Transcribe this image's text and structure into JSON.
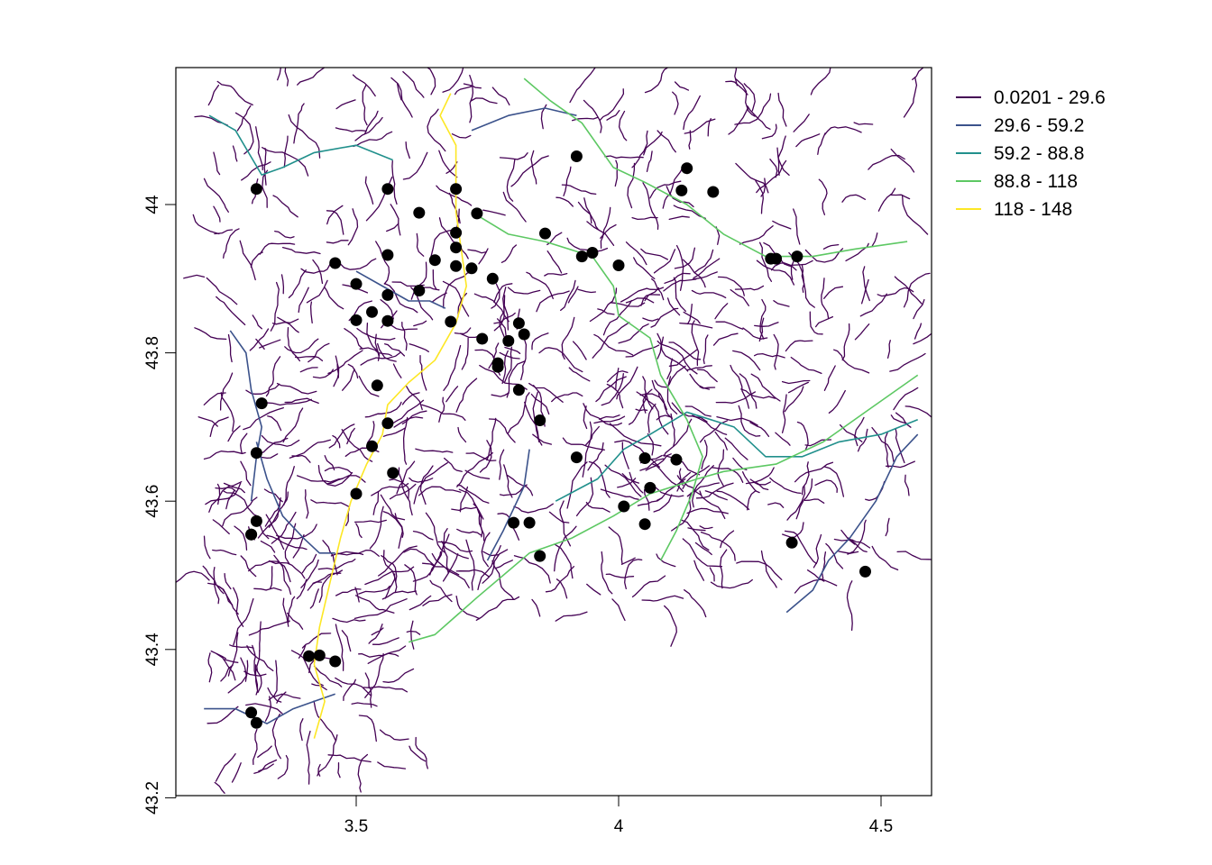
{
  "map": {
    "x_axis": {
      "ticks": [
        "3.5",
        "4",
        "4.5"
      ],
      "tick_values": [
        3.5,
        4.0,
        4.5
      ],
      "range": [
        3.2,
        4.57
      ]
    },
    "y_axis": {
      "ticks": [
        "43.2",
        "43.4",
        "43.6",
        "43.8",
        "44"
      ],
      "tick_values": [
        43.2,
        43.4,
        43.6,
        43.8,
        44.0
      ],
      "range": [
        43.2,
        44.17
      ]
    },
    "legend": {
      "placement": "right-top",
      "entries": [
        {
          "label": "0.0201 - 29.6",
          "color": "#440154"
        },
        {
          "label": "29.6 - 59.2",
          "color": "#3B528B"
        },
        {
          "label": "59.2 - 88.8",
          "color": "#21908C"
        },
        {
          "label": "88.8 - 118",
          "color": "#5DC863"
        },
        {
          "label": "118 - 148",
          "color": "#FDE725"
        }
      ]
    },
    "stations": [
      [
        3.31,
        44.021
      ],
      [
        3.56,
        44.021
      ],
      [
        3.69,
        44.021
      ],
      [
        3.62,
        43.989
      ],
      [
        3.73,
        43.988
      ],
      [
        3.92,
        44.065
      ],
      [
        4.13,
        44.049
      ],
      [
        4.12,
        44.019
      ],
      [
        4.18,
        44.017
      ],
      [
        3.86,
        43.961
      ],
      [
        3.69,
        43.962
      ],
      [
        3.69,
        43.942
      ],
      [
        3.56,
        43.932
      ],
      [
        3.65,
        43.925
      ],
      [
        3.69,
        43.917
      ],
      [
        3.72,
        43.914
      ],
      [
        3.46,
        43.921
      ],
      [
        3.93,
        43.93
      ],
      [
        3.95,
        43.935
      ],
      [
        4.0,
        43.918
      ],
      [
        4.29,
        43.927
      ],
      [
        4.3,
        43.927
      ],
      [
        4.34,
        43.93
      ],
      [
        3.76,
        43.9
      ],
      [
        3.5,
        43.893
      ],
      [
        3.62,
        43.884
      ],
      [
        3.56,
        43.878
      ],
      [
        3.53,
        43.855
      ],
      [
        3.5,
        43.844
      ],
      [
        3.56,
        43.843
      ],
      [
        3.68,
        43.842
      ],
      [
        3.81,
        43.84
      ],
      [
        3.82,
        43.825
      ],
      [
        3.74,
        43.819
      ],
      [
        3.79,
        43.816
      ],
      [
        3.77,
        43.786
      ],
      [
        3.77,
        43.781
      ],
      [
        3.54,
        43.756
      ],
      [
        3.81,
        43.75
      ],
      [
        3.32,
        43.732
      ],
      [
        3.56,
        43.705
      ],
      [
        3.85,
        43.709
      ],
      [
        3.53,
        43.674
      ],
      [
        3.31,
        43.665
      ],
      [
        3.92,
        43.659
      ],
      [
        4.05,
        43.658
      ],
      [
        4.11,
        43.656
      ],
      [
        3.57,
        43.638
      ],
      [
        4.06,
        43.618
      ],
      [
        3.5,
        43.61
      ],
      [
        4.01,
        43.593
      ],
      [
        3.31,
        43.573
      ],
      [
        3.8,
        43.571
      ],
      [
        3.83,
        43.571
      ],
      [
        4.05,
        43.569
      ],
      [
        3.3,
        43.555
      ],
      [
        3.3,
        43.555
      ],
      [
        4.33,
        43.544
      ],
      [
        3.85,
        43.526
      ],
      [
        4.47,
        43.505
      ],
      [
        3.41,
        43.391
      ],
      [
        3.43,
        43.392
      ],
      [
        3.46,
        43.384
      ],
      [
        3.3,
        43.315
      ],
      [
        3.31,
        43.301
      ]
    ],
    "rivers": [
      {
        "class": 4,
        "points": [
          [
            3.68,
            44.15
          ],
          [
            3.66,
            44.12
          ],
          [
            3.69,
            44.08
          ],
          [
            3.69,
            44.03
          ],
          [
            3.69,
            43.99
          ],
          [
            3.7,
            43.94
          ],
          [
            3.71,
            43.89
          ],
          [
            3.69,
            43.84
          ],
          [
            3.65,
            43.79
          ],
          [
            3.6,
            43.76
          ],
          [
            3.56,
            43.73
          ],
          [
            3.55,
            43.69
          ],
          [
            3.52,
            43.65
          ],
          [
            3.49,
            43.6
          ],
          [
            3.47,
            43.55
          ],
          [
            3.45,
            43.49
          ],
          [
            3.43,
            43.43
          ],
          [
            3.42,
            43.38
          ],
          [
            3.44,
            43.33
          ],
          [
            3.42,
            43.28
          ]
        ]
      },
      {
        "class": 3,
        "points": [
          [
            3.82,
            44.17
          ],
          [
            3.87,
            44.14
          ],
          [
            3.93,
            44.11
          ],
          [
            3.99,
            44.05
          ],
          [
            4.05,
            44.03
          ],
          [
            4.13,
            44.0
          ],
          [
            4.2,
            43.96
          ],
          [
            4.28,
            43.93
          ],
          [
            4.37,
            43.93
          ],
          [
            4.45,
            43.94
          ],
          [
            4.55,
            43.95
          ]
        ]
      },
      {
        "class": 3,
        "points": [
          [
            3.72,
            43.99
          ],
          [
            3.79,
            43.96
          ],
          [
            3.86,
            43.95
          ],
          [
            3.95,
            43.93
          ],
          [
            3.99,
            43.89
          ],
          [
            4.0,
            43.85
          ],
          [
            4.06,
            43.82
          ],
          [
            4.08,
            43.77
          ],
          [
            4.13,
            43.71
          ],
          [
            4.16,
            43.66
          ],
          [
            4.14,
            43.61
          ],
          [
            4.11,
            43.56
          ],
          [
            4.08,
            43.52
          ]
        ]
      },
      {
        "class": 3,
        "points": [
          [
            3.6,
            43.41
          ],
          [
            3.65,
            43.42
          ],
          [
            3.73,
            43.47
          ],
          [
            3.83,
            43.53
          ],
          [
            3.91,
            43.55
          ],
          [
            3.99,
            43.58
          ],
          [
            4.06,
            43.61
          ],
          [
            4.15,
            43.63
          ],
          [
            4.2,
            43.64
          ],
          [
            4.3,
            43.65
          ],
          [
            4.39,
            43.68
          ],
          [
            4.47,
            43.72
          ],
          [
            4.57,
            43.77
          ]
        ]
      },
      {
        "class": 2,
        "points": [
          [
            3.22,
            44.12
          ],
          [
            3.27,
            44.1
          ],
          [
            3.32,
            44.04
          ],
          [
            3.36,
            44.05
          ],
          [
            3.42,
            44.07
          ],
          [
            3.5,
            44.08
          ],
          [
            3.57,
            44.06
          ]
        ]
      },
      {
        "class": 2,
        "points": [
          [
            3.88,
            43.6
          ],
          [
            3.96,
            43.63
          ],
          [
            4.01,
            43.67
          ],
          [
            4.06,
            43.69
          ],
          [
            4.13,
            43.72
          ],
          [
            4.22,
            43.7
          ],
          [
            4.28,
            43.66
          ],
          [
            4.35,
            43.66
          ],
          [
            4.42,
            43.68
          ],
          [
            4.5,
            43.69
          ],
          [
            4.57,
            43.71
          ]
        ]
      },
      {
        "class": 1,
        "points": [
          [
            3.21,
            43.32
          ],
          [
            3.27,
            43.32
          ],
          [
            3.33,
            43.3
          ],
          [
            3.38,
            43.32
          ],
          [
            3.42,
            43.33
          ],
          [
            3.46,
            43.34
          ]
        ]
      },
      {
        "class": 1,
        "points": [
          [
            3.31,
            43.68
          ],
          [
            3.33,
            43.63
          ],
          [
            3.36,
            43.58
          ],
          [
            3.4,
            43.55
          ],
          [
            3.43,
            43.53
          ],
          [
            3.46,
            43.53
          ]
        ]
      },
      {
        "class": 1,
        "points": [
          [
            3.5,
            43.91
          ],
          [
            3.55,
            43.89
          ],
          [
            3.6,
            43.87
          ],
          [
            3.64,
            43.87
          ],
          [
            3.67,
            43.86
          ]
        ]
      },
      {
        "class": 1,
        "points": [
          [
            3.26,
            43.83
          ],
          [
            3.29,
            43.8
          ],
          [
            3.3,
            43.75
          ],
          [
            3.32,
            43.7
          ],
          [
            3.31,
            43.66
          ],
          [
            3.3,
            43.6
          ]
        ]
      },
      {
        "class": 1,
        "points": [
          [
            4.57,
            43.69
          ],
          [
            4.53,
            43.66
          ],
          [
            4.49,
            43.6
          ],
          [
            4.44,
            43.55
          ],
          [
            4.4,
            43.52
          ],
          [
            4.37,
            43.48
          ],
          [
            4.32,
            43.45
          ]
        ]
      },
      {
        "class": 1,
        "points": [
          [
            3.75,
            43.52
          ],
          [
            3.78,
            43.56
          ],
          [
            3.82,
            43.62
          ],
          [
            3.83,
            43.67
          ]
        ]
      },
      {
        "class": 1,
        "points": [
          [
            3.72,
            44.1
          ],
          [
            3.79,
            44.12
          ],
          [
            3.86,
            44.13
          ],
          [
            3.92,
            44.12
          ]
        ]
      }
    ]
  }
}
